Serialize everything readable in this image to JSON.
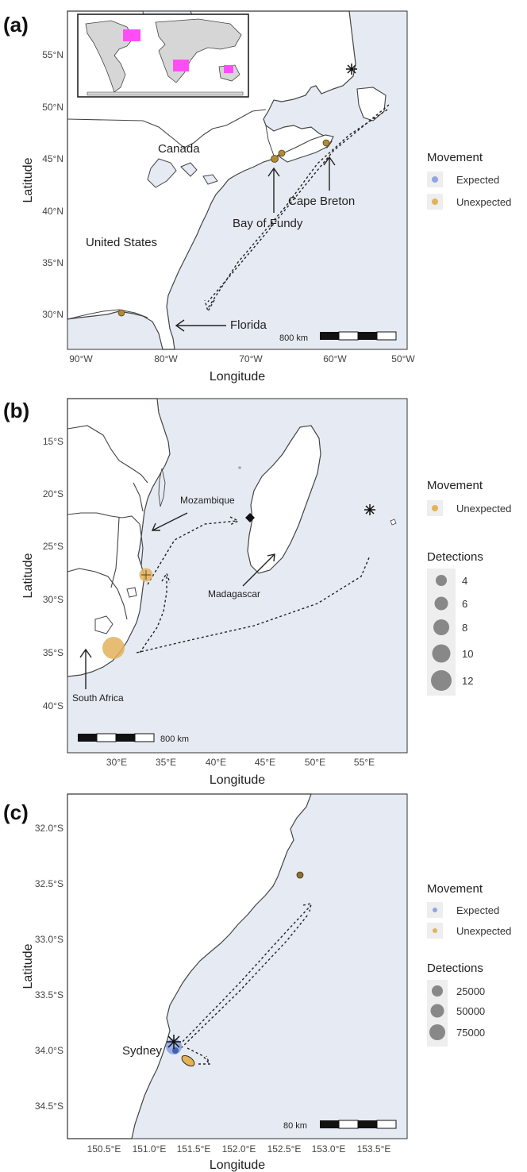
{
  "panels": [
    {
      "label": "(a)",
      "xlabel": "Longitude",
      "ylabel": "Latitude",
      "xticks": [
        "90°W",
        "80°W",
        "70°W",
        "60°W",
        "50°W"
      ],
      "yticks": [
        "30°N",
        "35°N",
        "40°N",
        "45°N",
        "50°N",
        "55°N"
      ],
      "places": [
        "Canada",
        "United States",
        "Bay of Fundy",
        "Cape Breton",
        "Florida"
      ],
      "scalebar": "800 km",
      "legend": {
        "movement_title": "Movement",
        "movement_items": [
          "Expected",
          "Unexpected"
        ]
      }
    },
    {
      "label": "(b)",
      "xlabel": "Longitude",
      "ylabel": "Latitude",
      "xticks": [
        "30°E",
        "35°E",
        "40°E",
        "45°E",
        "50°E",
        "55°E"
      ],
      "yticks": [
        "15°S",
        "20°S",
        "25°S",
        "30°S",
        "35°S",
        "40°S"
      ],
      "places": [
        "Mozambique",
        "Madagascar",
        "South Africa"
      ],
      "scalebar": "800 km",
      "legend": {
        "movement_title": "Movement",
        "movement_items": [
          "Unexpected"
        ],
        "detections_title": "Detections",
        "detections_items": [
          "4",
          "6",
          "8",
          "10",
          "12"
        ]
      }
    },
    {
      "label": "(c)",
      "xlabel": "Longitude",
      "ylabel": "Latitude",
      "xticks": [
        "150.5°E",
        "151.0°E",
        "151.5°E",
        "152.0°E",
        "152.5°E",
        "153.0°E",
        "153.5°E"
      ],
      "yticks": [
        "32.0°S",
        "32.5°S",
        "33.0°S",
        "33.5°S",
        "34.0°S",
        "34.5°S"
      ],
      "places": [
        "Sydney"
      ],
      "scalebar": "80 km",
      "legend": {
        "movement_title": "Movement",
        "movement_items": [
          "Expected",
          "Unexpected"
        ],
        "detections_title": "Detections",
        "detections_items": [
          "25000",
          "50000",
          "75000"
        ]
      }
    }
  ],
  "colors": {
    "ocean": "#e6ebf3",
    "land": "#ffffff",
    "expected": "#8fa6e0",
    "unexpected": "#e3b25c",
    "inset_highlight": "#ff4df5",
    "legend_key_bg": "#eeeeee"
  }
}
